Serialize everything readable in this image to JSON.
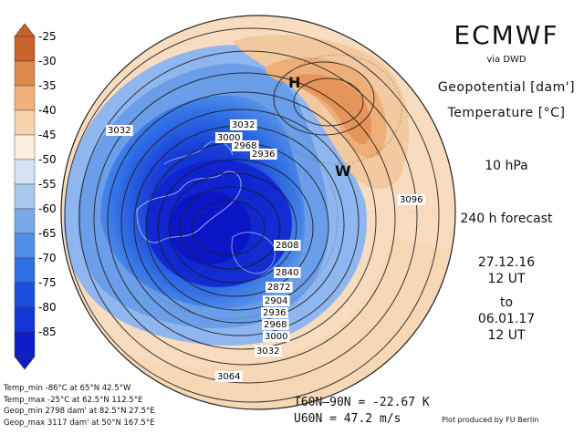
{
  "title": "ECMWF",
  "via": "via DWD",
  "geopotential_label": "Geopotential [dam']",
  "temperature_label": "Temperature [°C]",
  "level": "10 hPa",
  "forecast": "240 h forecast",
  "init_date": "27.12.16",
  "init_time": "12 UT",
  "to": "to",
  "valid_date": "06.01.17",
  "valid_time": "12 UT",
  "colorbar": {
    "labels": [
      "-25",
      "-30",
      "-35",
      "-40",
      "-45",
      "-50",
      "-55",
      "-60",
      "-65",
      "-70",
      "-75",
      "-80",
      "-85"
    ],
    "colors": [
      "#c8642a",
      "#e0894c",
      "#f0b07c",
      "#f8d4ae",
      "#fbeedd",
      "#d4e4f4",
      "#a9c8ee",
      "#78a8e6",
      "#4f8ee8",
      "#2e6fe6",
      "#1a4ee0",
      "#1436d8",
      "#0d1ec8"
    ]
  },
  "stats": {
    "temp_min": "Temp_min  -86°C at 65°N 42.5°W",
    "temp_max": "Temp_max  -25°C at 62.5°N 112.5°E",
    "geop_min": "Geop_min  2798 dam' at 82.5°N 27.5°E",
    "geop_max": "Geop_max  3117 dam' at 50°N 167.5°E"
  },
  "average_temp": "T60N–90N  =   -22.67 K",
  "average_wind": "U60N     =   47.2 m/s",
  "credit": "Plot produced by FU Berlin",
  "map": {
    "high_label": "H",
    "low_label": "W",
    "contour_labels": [
      "3032",
      "3032",
      "3000",
      "2968",
      "2936",
      "3096",
      "2808",
      "2840",
      "2872",
      "2904",
      "2936",
      "2968",
      "3000",
      "3032",
      "3064"
    ]
  }
}
